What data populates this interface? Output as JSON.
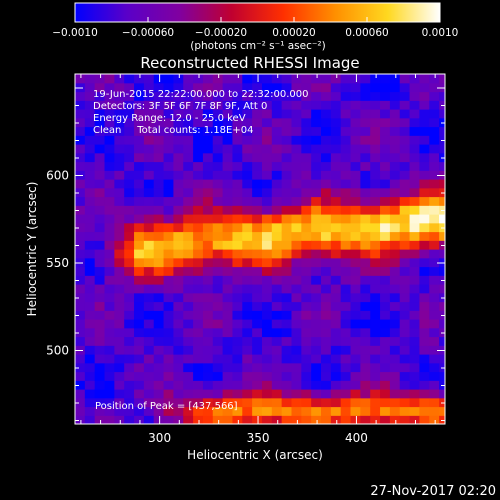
{
  "chart_data": {
    "type": "heatmap",
    "title": "Reconstructed RHESSI Image",
    "xlabel": "Heliocentric X (arcsec)",
    "ylabel": "Heliocentric Y (arcsec)",
    "xlim": [
      257,
      445
    ],
    "ylim": [
      458,
      658
    ],
    "x_ticks": [
      300,
      350,
      400
    ],
    "y_ticks": [
      500,
      550,
      600
    ],
    "colorbar": {
      "range": [
        -0.001,
        0.001
      ],
      "tick_values": [
        -0.001,
        -0.0006,
        -0.0002,
        0.0002,
        0.0006,
        0.001
      ],
      "tick_labels": [
        "−0.0010",
        "−0.00060",
        "−0.00020",
        "0.00020",
        "0.00060",
        "0.0010"
      ],
      "unit_label": "(photons cm⁻² s⁻¹ asec⁻²)",
      "colors": [
        "#0000ff",
        "#5a00c8",
        "#8000a0",
        "#c00030",
        "#ff3000",
        "#ff9000",
        "#ffd820",
        "#ffffff"
      ]
    },
    "info_lines": [
      "19-Jun-2015 22:22:00.000 to 22:32:00.000",
      "Detectors: 3F 5F 6F 7F 8F 9F, Att 0",
      "Energy Range: 12.0 - 25.0 keV",
      "Clean     Total counts: 1.18E+04"
    ],
    "peak_label": "Position of Peak = [437,566]",
    "peak_position": [
      437,
      566
    ],
    "total_counts": "1.18E+04",
    "energy_range_kev": [
      12.0,
      25.0
    ],
    "features": [
      {
        "kind": "bright-band",
        "y_center_left": 555,
        "y_center_right": 575,
        "x_start": 265,
        "x_end": 445,
        "peak_value": 0.001
      },
      {
        "kind": "bright-band",
        "y_center": 466,
        "x_start": 290,
        "x_end": 445,
        "peak_value": 0.0005
      }
    ]
  },
  "footer": {
    "timestamp": "27-Nov-2017 02:20"
  }
}
